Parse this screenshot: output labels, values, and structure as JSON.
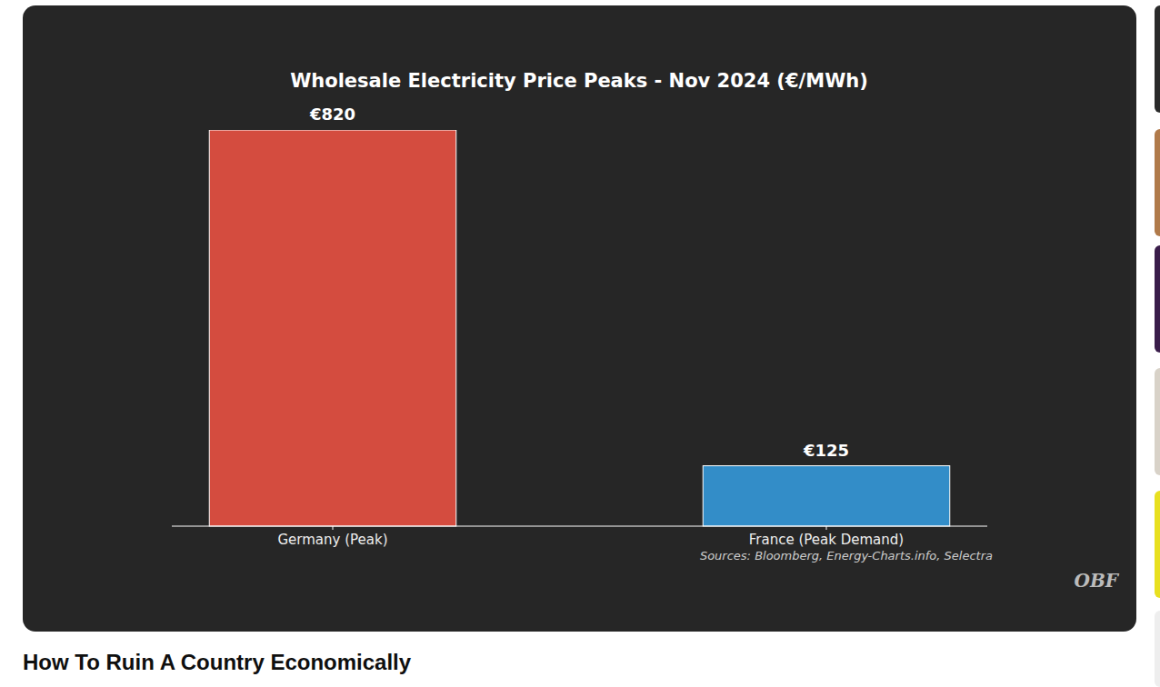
{
  "chart_data": {
    "type": "bar",
    "title": "Wholesale Electricity Price Peaks - Nov 2024 (€/MWh)",
    "categories": [
      "Germany (Peak)",
      "France (Peak Demand)"
    ],
    "values": [
      820,
      125
    ],
    "value_labels": [
      "€820",
      "€125"
    ],
    "colors": [
      "#d44c3f",
      "#338dc8"
    ],
    "ylim": [
      0,
      820
    ],
    "data_labels": true,
    "tick_labels": "x",
    "grid": false,
    "source": "Sources: Bloomberg, Energy-Charts.info, Selectra",
    "watermark": "OBF"
  },
  "page_title": "How To Ruin A Country Economically"
}
